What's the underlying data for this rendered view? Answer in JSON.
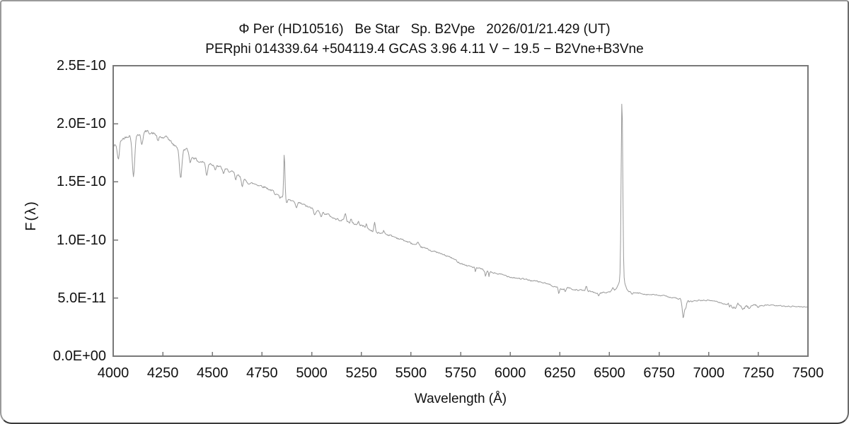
{
  "colors": {
    "background": "#ffffff",
    "spectrum_line": "#9a9a9a",
    "plot_frame": "#787878",
    "text": "#111111"
  },
  "chart_data": {
    "type": "line",
    "title_line1": "Φ Per (HD10516)   Be Star   Sp. B2Vpe   2026/01/21.429 (UT)",
    "title_line2": "PERphi 014339.64 +504119.4 GCAS 3.96 4.11 V − 19.5 − B2Vne+B3Vne",
    "xlabel": "Wavelength (Å)",
    "ylabel": "F(λ)",
    "xlim": [
      4000,
      7500
    ],
    "ylim_flux": [
      0,
      2.5e-10
    ],
    "flux_scale": 1e-10,
    "grid": false,
    "legend": false,
    "x_ticks": [
      4000,
      4250,
      4500,
      4750,
      5000,
      5250,
      5500,
      5750,
      6000,
      6250,
      6500,
      6750,
      7000,
      7250,
      7500
    ],
    "x_tick_labels": [
      "4000",
      "4250",
      "4500",
      "4750",
      "5000",
      "5250",
      "5500",
      "5750",
      "6000",
      "6250",
      "6500",
      "6750",
      "7000",
      "7250",
      "7500"
    ],
    "y_ticks": [
      0,
      0.5,
      1.0,
      1.5,
      2.0,
      2.5
    ],
    "y_tick_labels": [
      "0.0E+00",
      "5.0E-11",
      "1.0E-10",
      "1.5E-10",
      "2.0E-10",
      "2.5E-10"
    ],
    "continuum_columns": [
      "wavelength_angstrom",
      "flux_1e-10"
    ],
    "continuum": [
      [
        4000,
        1.8
      ],
      [
        4040,
        1.86
      ],
      [
        4075,
        1.9
      ],
      [
        4130,
        1.91
      ],
      [
        4170,
        1.935
      ],
      [
        4210,
        1.91
      ],
      [
        4245,
        1.88
      ],
      [
        4275,
        1.88
      ],
      [
        4305,
        1.815
      ],
      [
        4335,
        1.79
      ],
      [
        4370,
        1.78
      ],
      [
        4400,
        1.72
      ],
      [
        4430,
        1.675
      ],
      [
        4460,
        1.67
      ],
      [
        4490,
        1.66
      ],
      [
        4520,
        1.64
      ],
      [
        4560,
        1.61
      ],
      [
        4590,
        1.59
      ],
      [
        4625,
        1.56
      ],
      [
        4655,
        1.52
      ],
      [
        4685,
        1.49
      ],
      [
        4720,
        1.48
      ],
      [
        4760,
        1.46
      ],
      [
        4800,
        1.425
      ],
      [
        4835,
        1.4
      ],
      [
        4860,
        1.36
      ],
      [
        4885,
        1.34
      ],
      [
        4915,
        1.33
      ],
      [
        4950,
        1.31
      ],
      [
        5000,
        1.27
      ],
      [
        5040,
        1.245
      ],
      [
        5080,
        1.22
      ],
      [
        5120,
        1.18
      ],
      [
        5160,
        1.17
      ],
      [
        5210,
        1.14
      ],
      [
        5260,
        1.12
      ],
      [
        5295,
        1.085
      ],
      [
        5330,
        1.06
      ],
      [
        5370,
        1.055
      ],
      [
        5410,
        1.03
      ],
      [
        5460,
        1.0
      ],
      [
        5510,
        0.965
      ],
      [
        5560,
        0.935
      ],
      [
        5610,
        0.905
      ],
      [
        5660,
        0.875
      ],
      [
        5700,
        0.85
      ],
      [
        5740,
        0.81
      ],
      [
        5780,
        0.78
      ],
      [
        5820,
        0.765
      ],
      [
        5860,
        0.745
      ],
      [
        5910,
        0.72
      ],
      [
        5960,
        0.7
      ],
      [
        6010,
        0.68
      ],
      [
        6060,
        0.665
      ],
      [
        6110,
        0.65
      ],
      [
        6160,
        0.635
      ],
      [
        6210,
        0.61
      ],
      [
        6240,
        0.59
      ],
      [
        6265,
        0.575
      ],
      [
        6290,
        0.59
      ],
      [
        6320,
        0.575
      ],
      [
        6360,
        0.565
      ],
      [
        6400,
        0.56
      ],
      [
        6430,
        0.545
      ],
      [
        6470,
        0.545
      ],
      [
        6505,
        0.555
      ],
      [
        6540,
        0.575
      ],
      [
        6565,
        0.57
      ],
      [
        6590,
        0.555
      ],
      [
        6620,
        0.545
      ],
      [
        6660,
        0.54
      ],
      [
        6700,
        0.53
      ],
      [
        6740,
        0.525
      ],
      [
        6790,
        0.515
      ],
      [
        6830,
        0.5
      ],
      [
        6855,
        0.49
      ],
      [
        6880,
        0.475
      ],
      [
        6905,
        0.465
      ],
      [
        6925,
        0.475
      ],
      [
        6955,
        0.48
      ],
      [
        7000,
        0.48
      ],
      [
        7030,
        0.475
      ],
      [
        7060,
        0.46
      ],
      [
        7090,
        0.445
      ],
      [
        7120,
        0.425
      ],
      [
        7150,
        0.415
      ],
      [
        7185,
        0.415
      ],
      [
        7220,
        0.42
      ],
      [
        7260,
        0.435
      ],
      [
        7300,
        0.44
      ],
      [
        7340,
        0.435
      ],
      [
        7380,
        0.43
      ],
      [
        7420,
        0.43
      ],
      [
        7460,
        0.425
      ],
      [
        7500,
        0.425
      ]
    ],
    "features_columns": [
      "center_angstrom",
      "amplitude_1e-10",
      "sigma_angstrom"
    ],
    "features": [
      [
        4026,
        -0.15,
        5
      ],
      [
        4102,
        -0.36,
        6
      ],
      [
        4144,
        -0.09,
        5
      ],
      [
        4226,
        -0.05,
        4
      ],
      [
        4340,
        -0.26,
        6
      ],
      [
        4388,
        -0.07,
        5
      ],
      [
        4471,
        -0.105,
        5
      ],
      [
        4515,
        -0.04,
        4
      ],
      [
        4555,
        -0.04,
        4
      ],
      [
        4617,
        -0.05,
        4
      ],
      [
        4650,
        -0.055,
        4
      ],
      [
        4815,
        -0.03,
        4
      ],
      [
        4840,
        -0.035,
        4
      ],
      [
        4862,
        0.39,
        3
      ],
      [
        4874,
        -0.03,
        4
      ],
      [
        4922,
        -0.055,
        5
      ],
      [
        5016,
        -0.045,
        5
      ],
      [
        5048,
        -0.03,
        4
      ],
      [
        5169,
        0.065,
        4
      ],
      [
        5198,
        0.035,
        3
      ],
      [
        5235,
        0.035,
        3
      ],
      [
        5275,
        0.035,
        3
      ],
      [
        5317,
        0.085,
        3.5
      ],
      [
        5363,
        0.03,
        3
      ],
      [
        5535,
        0.02,
        4
      ],
      [
        5825,
        -0.045,
        2
      ],
      [
        5876,
        -0.055,
        3
      ],
      [
        5893,
        -0.045,
        2.5
      ],
      [
        6245,
        -0.05,
        3
      ],
      [
        6278,
        -0.03,
        2.5
      ],
      [
        6383,
        0.035,
        4
      ],
      [
        6445,
        -0.03,
        3
      ],
      [
        6517,
        0.025,
        4
      ],
      [
        6563,
        1.55,
        4
      ],
      [
        6563,
        0.1,
        14
      ],
      [
        6613,
        -0.02,
        3
      ],
      [
        6872,
        -0.15,
        5
      ],
      [
        6884,
        -0.06,
        4
      ],
      [
        7147,
        0.025,
        5
      ]
    ],
    "sample_step_angstrom": 3,
    "noise": {
      "seed": 42,
      "amp0": 0.012,
      "decay": 2000,
      "floor": 0.0025,
      "persistence": 0.55,
      "regions": [
        [
          7095,
          7255,
          0.011
        ],
        [
          6850,
          6915,
          0.005
        ],
        [
          5865,
          5900,
          0.003
        ]
      ]
    }
  }
}
